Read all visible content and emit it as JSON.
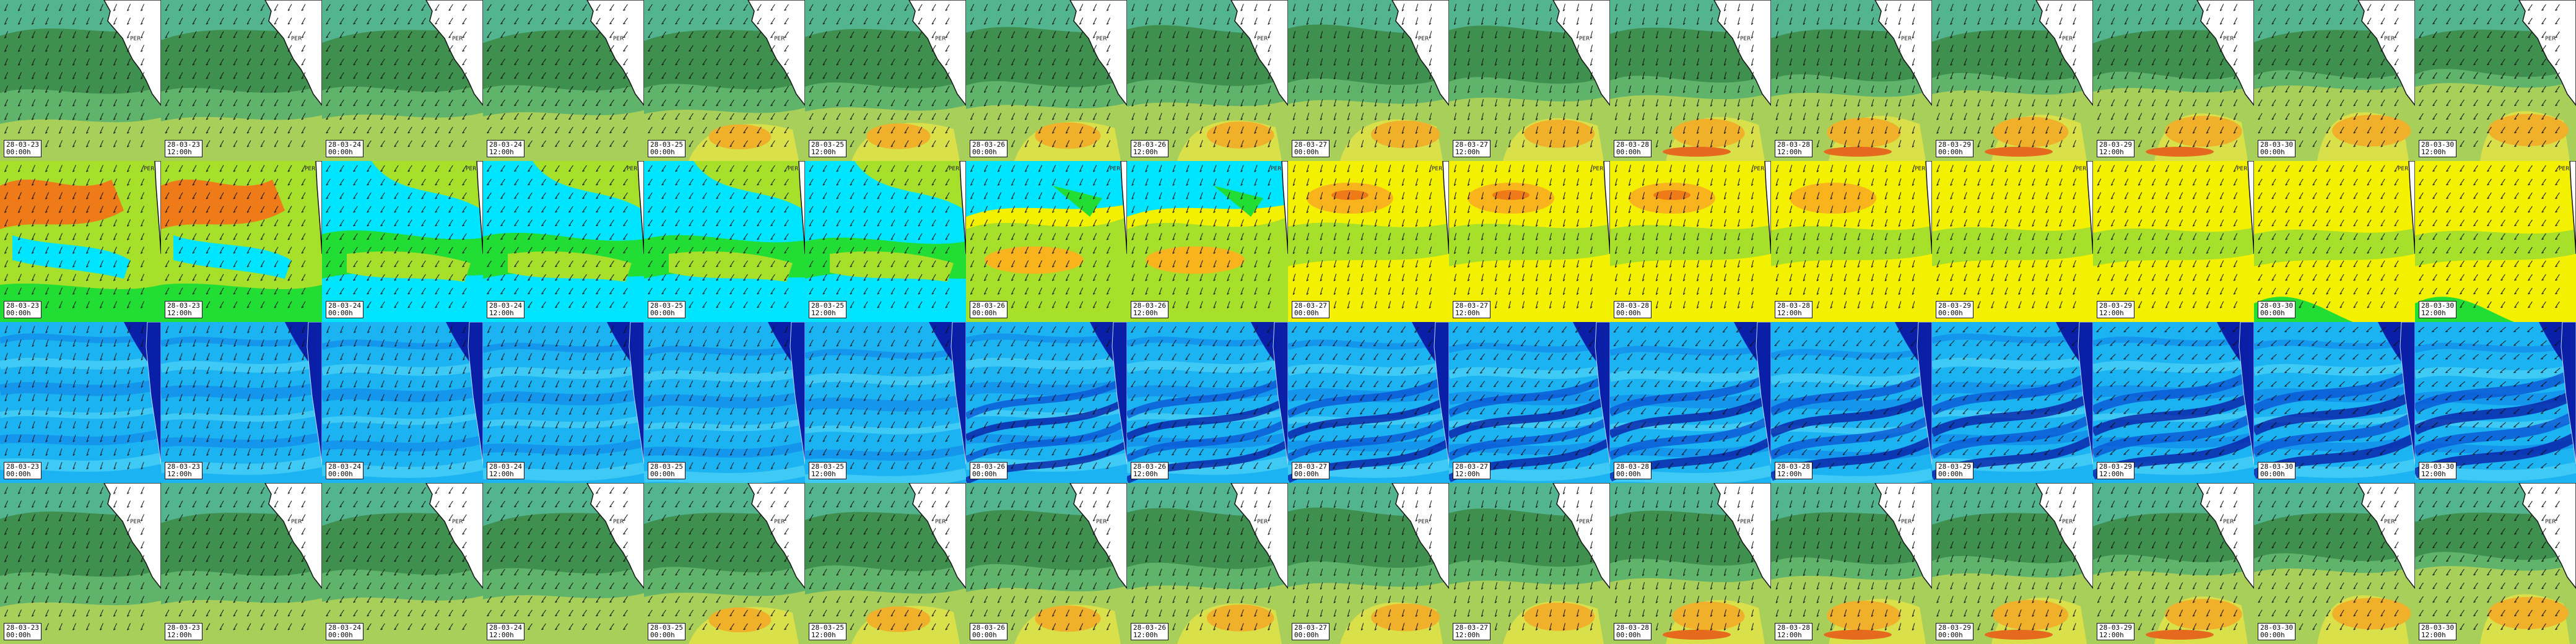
{
  "title": "",
  "rows": [
    {
      "id": "row-1",
      "palette": "wind"
    },
    {
      "id": "row-2",
      "palette": "sst"
    },
    {
      "id": "row-3",
      "palette": "wave"
    },
    {
      "id": "row-4",
      "palette": "wind"
    }
  ],
  "frames": [
    {
      "date": "28-03-23",
      "time": "00:00h"
    },
    {
      "date": "28-03-23",
      "time": "12:00h"
    },
    {
      "date": "28-03-24",
      "time": "00:00h"
    },
    {
      "date": "28-03-24",
      "time": "12:00h"
    },
    {
      "date": "28-03-25",
      "time": "00:00h"
    },
    {
      "date": "28-03-25",
      "time": "12:00h"
    },
    {
      "date": "28-03-26",
      "time": "00:00h"
    },
    {
      "date": "28-03-26",
      "time": "12:00h"
    },
    {
      "date": "28-03-27",
      "time": "00:00h"
    },
    {
      "date": "28-03-27",
      "time": "12:00h"
    },
    {
      "date": "28-03-28",
      "time": "00:00h"
    },
    {
      "date": "28-03-28",
      "time": "12:00h"
    },
    {
      "date": "28-03-29",
      "time": "00:00h"
    },
    {
      "date": "28-03-29",
      "time": "12:00h"
    },
    {
      "date": "28-03-30",
      "time": "00:00h"
    },
    {
      "date": "28-03-30",
      "time": "12:00h"
    }
  ],
  "map_labels": {
    "country": "PER",
    "city_north": "Ecuador",
    "city_mid": "Callao"
  },
  "colors": {
    "wind": [
      "#3f8f4f",
      "#5fb36a",
      "#53b58f",
      "#a8cf5a",
      "#d9e04a",
      "#f0b02a",
      "#e56a1e"
    ],
    "sst": [
      "#00e5ff",
      "#22dd33",
      "#a6e02a",
      "#f3f000",
      "#f9b31d",
      "#ef7b18"
    ],
    "wave": [
      "#0a1fa8",
      "#0b56d6",
      "#0f8ae8",
      "#1bb3f1",
      "#4ed4f7",
      "#9ff2ff"
    ],
    "land": "#ffffff",
    "coast": "#111111"
  }
}
